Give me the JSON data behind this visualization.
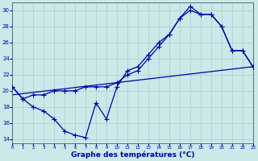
{
  "title": "Graphe des températures (°C)",
  "bg_color": "#cce8e8",
  "grid_color": "#aacccc",
  "line_color": "#0000aa",
  "xlim": [
    0,
    23
  ],
  "ylim": [
    13.5,
    31.0
  ],
  "yticks": [
    14,
    16,
    18,
    20,
    22,
    24,
    26,
    28,
    30
  ],
  "xticks": [
    0,
    1,
    2,
    3,
    4,
    5,
    6,
    7,
    8,
    9,
    10,
    11,
    12,
    13,
    14,
    15,
    16,
    17,
    18,
    19,
    20,
    21,
    22,
    23
  ],
  "curve1_x": [
    0,
    1,
    2,
    3,
    4,
    5,
    6,
    7,
    8,
    9,
    10,
    11,
    12,
    13,
    14,
    15,
    16,
    17,
    18,
    19,
    20,
    21,
    22,
    23
  ],
  "curve1_y": [
    20.5,
    19.0,
    18.0,
    17.5,
    16.5,
    15.0,
    14.5,
    14.2,
    18.5,
    16.5,
    20.5,
    22.5,
    23.0,
    24.5,
    26.0,
    27.0,
    29.0,
    30.5,
    29.5,
    29.5,
    28.0,
    25.0,
    25.0,
    23.0
  ],
  "curve2_x": [
    0,
    1,
    2,
    3,
    4,
    5,
    6,
    7,
    8,
    9,
    10,
    11,
    12,
    13,
    14,
    15,
    16,
    17,
    18,
    19,
    20,
    21,
    22,
    23
  ],
  "curve2_y": [
    20.5,
    19.0,
    19.5,
    19.5,
    20.0,
    20.0,
    20.0,
    20.5,
    20.5,
    20.5,
    21.0,
    22.0,
    22.5,
    24.0,
    25.5,
    27.0,
    29.0,
    30.0,
    29.5,
    29.5,
    28.0,
    25.0,
    25.0,
    23.0
  ],
  "trend_x": [
    0,
    23
  ],
  "trend_y": [
    19.5,
    23.0
  ],
  "xlabel_color": "#0000aa",
  "tick_color": "#0000aa"
}
